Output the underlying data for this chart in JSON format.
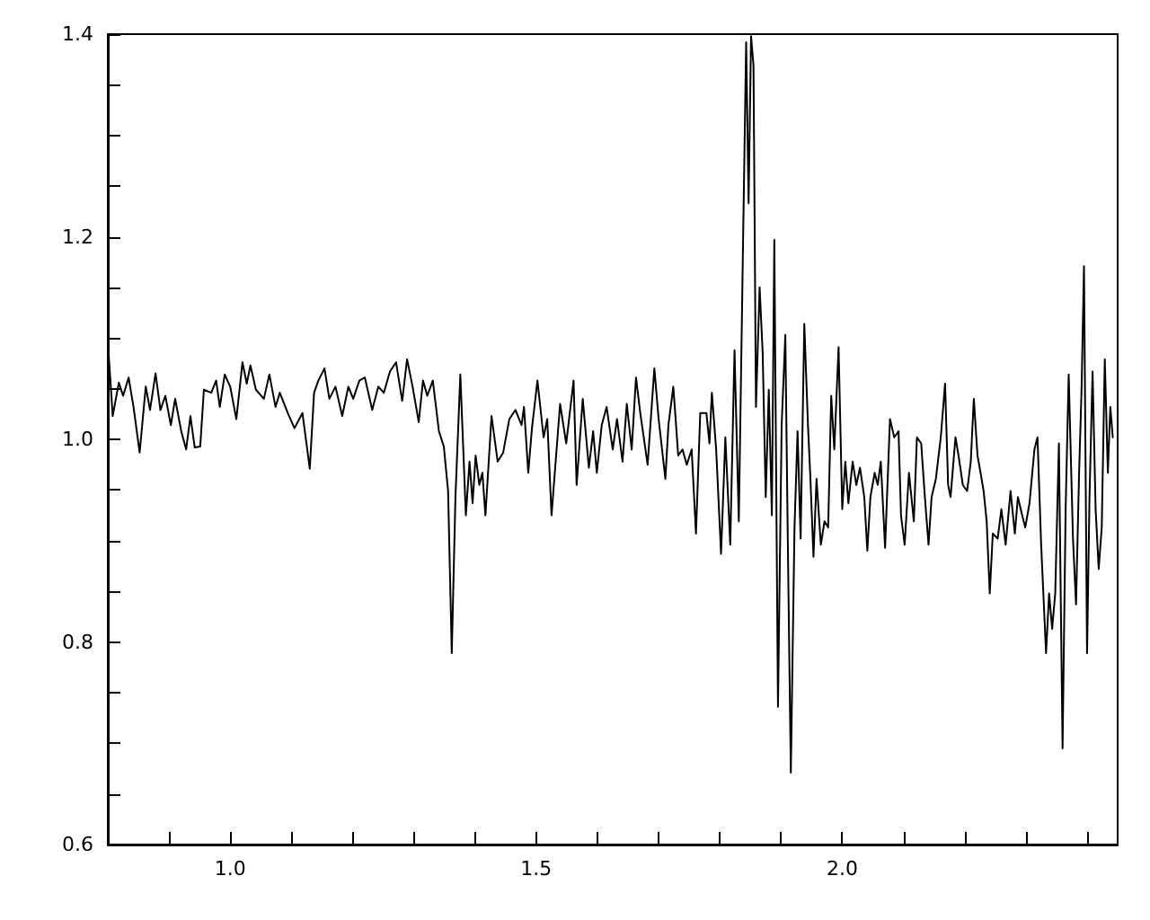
{
  "chart_data": {
    "type": "line",
    "x": [
      0.801,
      0.808,
      0.818,
      0.825,
      0.834,
      0.842,
      0.852,
      0.862,
      0.869,
      0.878,
      0.886,
      0.894,
      0.903,
      0.91,
      0.92,
      0.928,
      0.935,
      0.942,
      0.951,
      0.957,
      0.969,
      0.977,
      0.983,
      0.991,
      1.0,
      1.01,
      1.02,
      1.027,
      1.033,
      1.042,
      1.055,
      1.064,
      1.074,
      1.081,
      1.094,
      1.105,
      1.118,
      1.13,
      1.137,
      1.144,
      1.154,
      1.162,
      1.172,
      1.183,
      1.193,
      1.201,
      1.211,
      1.22,
      1.232,
      1.242,
      1.251,
      1.261,
      1.271,
      1.281,
      1.289,
      1.298,
      1.308,
      1.315,
      1.322,
      1.331,
      1.341,
      1.349,
      1.356,
      1.362,
      1.368,
      1.376,
      1.385,
      1.391,
      1.396,
      1.401,
      1.407,
      1.412,
      1.417,
      1.427,
      1.437,
      1.446,
      1.456,
      1.466,
      1.476,
      1.48,
      1.487,
      1.493,
      1.502,
      1.512,
      1.518,
      1.525,
      1.539,
      1.549,
      1.561,
      1.566,
      1.576,
      1.586,
      1.593,
      1.599,
      1.607,
      1.615,
      1.625,
      1.632,
      1.641,
      1.648,
      1.656,
      1.663,
      1.67,
      1.682,
      1.693,
      1.7,
      1.711,
      1.716,
      1.724,
      1.732,
      1.739,
      1.746,
      1.754,
      1.761,
      1.768,
      1.778,
      1.783,
      1.787,
      1.794,
      1.802,
      1.809,
      1.817,
      1.824,
      1.831,
      1.838,
      1.843,
      1.847,
      1.851,
      1.855,
      1.859,
      1.865,
      1.87,
      1.875,
      1.88,
      1.885,
      1.889,
      1.895,
      1.901,
      1.907,
      1.911,
      1.916,
      1.922,
      1.927,
      1.932,
      1.938,
      1.944,
      1.948,
      1.953,
      1.958,
      1.965,
      1.971,
      1.977,
      1.982,
      1.987,
      1.994,
      2.0,
      2.005,
      2.01,
      2.017,
      2.023,
      2.029,
      2.036,
      2.041,
      2.046,
      2.053,
      2.058,
      2.063,
      2.07,
      2.078,
      2.085,
      2.092,
      2.096,
      2.102,
      2.109,
      2.117,
      2.122,
      2.129,
      2.135,
      2.141,
      2.146,
      2.153,
      2.161,
      2.168,
      2.173,
      2.177,
      2.185,
      2.19,
      2.197,
      2.204,
      2.21,
      2.215,
      2.221,
      2.226,
      2.231,
      2.236,
      2.241,
      2.246,
      2.254,
      2.26,
      2.267,
      2.275,
      2.282,
      2.287,
      2.294,
      2.299,
      2.306,
      2.314,
      2.319,
      2.325,
      2.333,
      2.338,
      2.343,
      2.348,
      2.354,
      2.36,
      2.365,
      2.37,
      2.377,
      2.382,
      2.387,
      2.391,
      2.395,
      2.4,
      2.404,
      2.409,
      2.414,
      2.419,
      2.424,
      2.429,
      2.434,
      2.438,
      2.442
    ],
    "series": [
      {
        "color": "#000000",
        "values": [
          1.088,
          1.023,
          1.056,
          1.043,
          1.061,
          1.032,
          0.987,
          1.052,
          1.029,
          1.065,
          1.029,
          1.043,
          1.014,
          1.04,
          1.008,
          0.99,
          1.023,
          0.992,
          0.993,
          1.049,
          1.046,
          1.058,
          1.032,
          1.064,
          1.052,
          1.02,
          1.076,
          1.055,
          1.073,
          1.049,
          1.04,
          1.064,
          1.032,
          1.046,
          1.026,
          1.011,
          1.026,
          0.971,
          1.046,
          1.058,
          1.07,
          1.04,
          1.052,
          1.023,
          1.052,
          1.04,
          1.058,
          1.061,
          1.029,
          1.052,
          1.046,
          1.067,
          1.076,
          1.038,
          1.079,
          1.052,
          1.017,
          1.058,
          1.043,
          1.058,
          1.008,
          0.993,
          0.949,
          0.789,
          0.943,
          1.064,
          0.925,
          0.978,
          0.937,
          0.984,
          0.955,
          0.967,
          0.925,
          1.023,
          0.978,
          0.987,
          1.02,
          1.029,
          1.014,
          1.032,
          0.967,
          1.011,
          1.058,
          1.002,
          1.02,
          0.925,
          1.035,
          0.996,
          1.058,
          0.955,
          1.04,
          0.972,
          1.008,
          0.967,
          1.014,
          1.032,
          0.99,
          1.02,
          0.978,
          1.035,
          0.99,
          1.061,
          1.026,
          0.975,
          1.07,
          1.02,
          0.961,
          1.014,
          1.052,
          0.984,
          0.99,
          0.975,
          0.99,
          0.907,
          1.026,
          1.026,
          0.996,
          1.046,
          0.99,
          0.887,
          1.002,
          0.896,
          1.088,
          0.919,
          1.197,
          1.392,
          1.233,
          1.398,
          1.369,
          1.032,
          1.15,
          1.085,
          0.943,
          1.049,
          0.925,
          1.197,
          0.736,
          1.014,
          1.103,
          0.902,
          0.671,
          0.913,
          1.008,
          0.902,
          1.114,
          1.014,
          0.961,
          0.884,
          0.961,
          0.896,
          0.919,
          0.913,
          1.043,
          0.99,
          1.091,
          0.931,
          0.978,
          0.937,
          0.978,
          0.955,
          0.972,
          0.943,
          0.89,
          0.943,
          0.967,
          0.955,
          0.978,
          0.893,
          1.02,
          1.002,
          1.008,
          0.925,
          0.896,
          0.967,
          0.919,
          1.002,
          0.996,
          0.943,
          0.896,
          0.943,
          0.961,
          1.002,
          1.055,
          0.955,
          0.943,
          1.002,
          0.984,
          0.955,
          0.949,
          0.978,
          1.04,
          0.984,
          0.967,
          0.949,
          0.919,
          0.848,
          0.907,
          0.902,
          0.931,
          0.896,
          0.949,
          0.907,
          0.943,
          0.925,
          0.913,
          0.937,
          0.99,
          1.002,
          0.896,
          0.789,
          0.848,
          0.813,
          0.848,
          0.996,
          0.695,
          0.931,
          1.064,
          0.902,
          0.837,
          0.967,
          1.049,
          1.171,
          0.789,
          0.943,
          1.067,
          0.931,
          0.872,
          0.913,
          1.079,
          0.967,
          1.032,
          1.002
        ]
      }
    ],
    "xlim": [
      0.8,
      2.45
    ],
    "xticks": [
      {
        "value": 0.9,
        "label": null
      },
      {
        "value": 1.0,
        "label": "1.0"
      },
      {
        "value": 1.1,
        "label": null
      },
      {
        "value": 1.2,
        "label": null
      },
      {
        "value": 1.3,
        "label": null
      },
      {
        "value": 1.4,
        "label": null
      },
      {
        "value": 1.5,
        "label": "1.5"
      },
      {
        "value": 1.6,
        "label": null
      },
      {
        "value": 1.7,
        "label": null
      },
      {
        "value": 1.8,
        "label": null
      },
      {
        "value": 1.9,
        "label": null
      },
      {
        "value": 2.0,
        "label": "2.0"
      },
      {
        "value": 2.1,
        "label": null
      },
      {
        "value": 2.2,
        "label": null
      },
      {
        "value": 2.3,
        "label": null
      },
      {
        "value": 2.4,
        "label": null
      }
    ],
    "ylim": [
      0.6,
      1.4
    ],
    "yticks": [
      {
        "value": 0.6,
        "label": "0.6"
      },
      {
        "value": 0.65,
        "label": null
      },
      {
        "value": 0.7,
        "label": null
      },
      {
        "value": 0.75,
        "label": null
      },
      {
        "value": 0.8,
        "label": "0.8"
      },
      {
        "value": 0.85,
        "label": null
      },
      {
        "value": 0.9,
        "label": null
      },
      {
        "value": 0.95,
        "label": null
      },
      {
        "value": 1.0,
        "label": "1.0"
      },
      {
        "value": 1.05,
        "label": null
      },
      {
        "value": 1.1,
        "label": null
      },
      {
        "value": 1.15,
        "label": null
      },
      {
        "value": 1.2,
        "label": "1.2"
      },
      {
        "value": 1.25,
        "label": null
      },
      {
        "value": 1.3,
        "label": null
      },
      {
        "value": 1.35,
        "label": null
      },
      {
        "value": 1.4,
        "label": "1.4"
      }
    ],
    "grid": false,
    "marker": "none",
    "line_style": "solid"
  }
}
